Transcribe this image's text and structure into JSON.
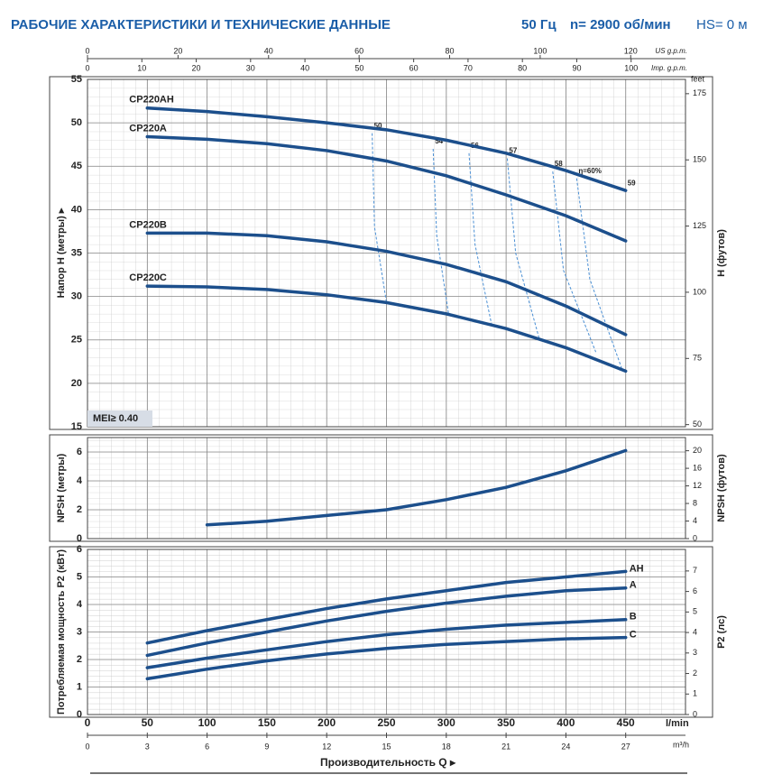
{
  "header": {
    "title": "РАБОЧИЕ ХАРАКТЕРИСТИКИ И ТЕХНИЧЕСКИЕ ДАННЫЕ",
    "freq": "50 Гц",
    "speed": "n= 2900 об/мин",
    "hs": "HS= 0 м"
  },
  "chart_data": [
    {
      "type": "line",
      "ylabel": "Напор H (метры) ▸",
      "y2label": "H (футов)",
      "y2unit": "feet",
      "xlim": [
        0,
        500
      ],
      "ylim": [
        15,
        55
      ],
      "yticks": [
        15,
        20,
        25,
        30,
        35,
        40,
        45,
        50,
        55
      ],
      "y2lim": [
        49.2,
        180.4
      ],
      "y2ticks": [
        50,
        75,
        100,
        125,
        150,
        175
      ],
      "top_axes": [
        {
          "label": "US g.p.m.",
          "lim": [
            0,
            132.1
          ],
          "ticks": [
            0,
            20,
            40,
            60,
            80,
            100,
            120
          ]
        },
        {
          "label": "Imp. g.p.m.",
          "lim": [
            0,
            110
          ],
          "ticks": [
            0,
            10,
            20,
            30,
            40,
            50,
            60,
            70,
            80,
            90,
            100
          ]
        }
      ],
      "annotation": "MEI≥ 0.40",
      "legend": "curve-start",
      "grid": true,
      "series": [
        {
          "name": "CP220AH",
          "color": "#1c4f8c",
          "x": [
            50,
            100,
            150,
            200,
            250,
            300,
            350,
            400,
            450
          ],
          "values": [
            51.7,
            51.3,
            50.7,
            50,
            49.2,
            48,
            46.5,
            44.5,
            42.2
          ]
        },
        {
          "name": "CP220A",
          "color": "#1c4f8c",
          "x": [
            50,
            100,
            150,
            200,
            250,
            300,
            350,
            400,
            450
          ],
          "values": [
            48.4,
            48.1,
            47.6,
            46.8,
            45.6,
            43.9,
            41.7,
            39.3,
            36.4
          ]
        },
        {
          "name": "CP220B",
          "color": "#1c4f8c",
          "x": [
            50,
            100,
            150,
            200,
            250,
            300,
            350,
            400,
            450
          ],
          "values": [
            37.3,
            37.3,
            37,
            36.3,
            35.2,
            33.7,
            31.7,
            28.9,
            25.6
          ]
        },
        {
          "name": "CP220C",
          "color": "#1c4f8c",
          "x": [
            50,
            100,
            150,
            200,
            250,
            300,
            350,
            400,
            450
          ],
          "values": [
            31.2,
            31.1,
            30.8,
            30.2,
            29.3,
            28,
            26.3,
            24.1,
            21.4
          ]
        }
      ],
      "efficiency_color": "#4a8fd4",
      "efficiency": [
        {
          "label": "50",
          "x": [
            238,
            240,
            250
          ],
          "values": [
            48.8,
            38,
            29.3
          ]
        },
        {
          "label": "54",
          "x": [
            289,
            292,
            302
          ],
          "values": [
            47,
            37,
            27.9
          ]
        },
        {
          "label": "56",
          "x": [
            319,
            324,
            338
          ],
          "values": [
            46.5,
            36,
            26.7
          ]
        },
        {
          "label": "57",
          "x": [
            351,
            358,
            378
          ],
          "values": [
            45.9,
            35,
            25
          ]
        },
        {
          "label": "58",
          "x": [
            389,
            398,
            425
          ],
          "values": [
            44.4,
            33,
            23.6
          ]
        },
        {
          "label": "η=60%",
          "x": [
            409,
            420,
            447
          ],
          "values": [
            43.6,
            32,
            21.6
          ]
        },
        {
          "label": "59",
          "x": [
            450
          ],
          "values": [
            42.2
          ]
        }
      ]
    },
    {
      "type": "line",
      "ylabel": "NPSH (метры)",
      "y2label": "NPSH (футов)",
      "xlim": [
        0,
        500
      ],
      "ylim": [
        0,
        7
      ],
      "yticks": [
        0,
        2,
        4,
        6
      ],
      "y2lim": [
        0,
        23
      ],
      "y2ticks": [
        0,
        4,
        8,
        12,
        16,
        20
      ],
      "grid": true,
      "series": [
        {
          "color": "#1c4f8c",
          "x": [
            100,
            150,
            200,
            250,
            300,
            350,
            400,
            450
          ],
          "values": [
            0.95,
            1.2,
            1.6,
            2.0,
            2.7,
            3.55,
            4.7,
            6.1
          ]
        }
      ]
    },
    {
      "type": "line",
      "ylabel": "Потребляемая мощность P2 (кВт)",
      "y2label": "P2 (лс)",
      "xlim": [
        0,
        500
      ],
      "xticks": [
        0,
        50,
        100,
        150,
        200,
        250,
        300,
        350,
        400,
        450
      ],
      "xunit": "l/min",
      "bottom_axis": {
        "label": "m³/h",
        "lim": [
          0,
          30
        ],
        "ticks": [
          0,
          3,
          6,
          9,
          12,
          15,
          18,
          21,
          24,
          27
        ]
      },
      "xlabel": "Производительность Q ▸",
      "ylim": [
        0,
        6
      ],
      "yticks": [
        0,
        1,
        2,
        3,
        4,
        5,
        6
      ],
      "y2lim": [
        0,
        8.05
      ],
      "y2ticks": [
        0,
        1,
        2,
        3,
        4,
        5,
        6,
        7
      ],
      "legend": "curve-end",
      "grid": true,
      "series": [
        {
          "name": "AH",
          "color": "#1c4f8c",
          "x": [
            50,
            100,
            150,
            200,
            250,
            300,
            350,
            400,
            450
          ],
          "values": [
            2.6,
            3.05,
            3.45,
            3.85,
            4.2,
            4.5,
            4.8,
            5.0,
            5.2
          ]
        },
        {
          "name": "A",
          "color": "#1c4f8c",
          "x": [
            50,
            100,
            150,
            200,
            250,
            300,
            350,
            400,
            450
          ],
          "values": [
            2.15,
            2.6,
            3.0,
            3.4,
            3.75,
            4.05,
            4.3,
            4.5,
            4.6
          ]
        },
        {
          "name": "B",
          "color": "#1c4f8c",
          "x": [
            50,
            100,
            150,
            200,
            250,
            300,
            350,
            400,
            450
          ],
          "values": [
            1.7,
            2.05,
            2.35,
            2.65,
            2.9,
            3.1,
            3.25,
            3.35,
            3.45
          ]
        },
        {
          "name": "C",
          "color": "#1c4f8c",
          "x": [
            50,
            100,
            150,
            200,
            250,
            300,
            350,
            400,
            450
          ],
          "values": [
            1.3,
            1.65,
            1.95,
            2.2,
            2.4,
            2.55,
            2.65,
            2.75,
            2.8
          ]
        }
      ]
    }
  ]
}
